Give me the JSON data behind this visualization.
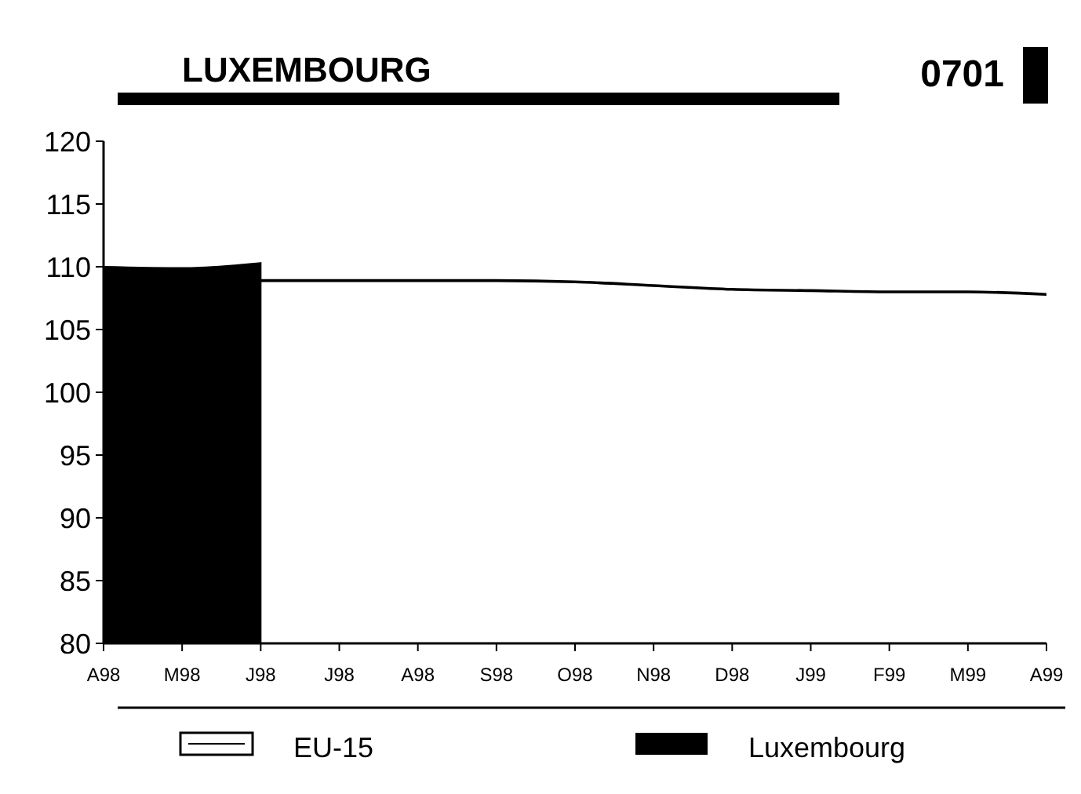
{
  "chart_data": {
    "type": "line",
    "title": "LUXEMBOURG",
    "annotations": [
      "0701"
    ],
    "categories": [
      "A98",
      "M98",
      "J98",
      "J98",
      "A98",
      "S98",
      "O98",
      "N98",
      "D98",
      "J99",
      "F99",
      "M99",
      "A99"
    ],
    "ylim": [
      80,
      120
    ],
    "yticks": [
      80,
      85,
      90,
      95,
      100,
      105,
      110,
      115,
      120
    ],
    "grid": false,
    "legend": "bottom",
    "series": [
      {
        "name": "EU-15",
        "color": "#000000",
        "values": [
          null,
          null,
          108.9,
          108.9,
          108.9,
          108.9,
          108.8,
          108.5,
          108.2,
          108.1,
          108.0,
          108.0,
          107.8
        ]
      },
      {
        "name": "Luxembourg",
        "type": "area",
        "color": "#000000",
        "values": [
          110.0,
          109.9,
          110.3,
          null,
          null,
          null,
          null,
          null,
          null,
          null,
          null,
          null,
          null
        ]
      }
    ]
  }
}
